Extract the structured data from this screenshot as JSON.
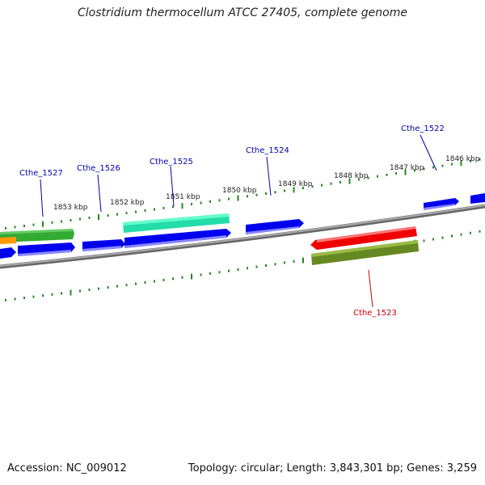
{
  "title": "Clostridium thermocellum ATCC 27405, complete genome",
  "footer": {
    "accession": "Accession: NC_009012",
    "summary": "Topology: circular; Length: 3,843,301 bp; Genes: 3,259"
  },
  "ruler_labels": [
    "1853 kbp",
    "1852 kbp",
    "1851 kbp",
    "1850 kbp",
    "1849 kbp",
    "1848 kbp",
    "1847 kbp",
    "1846 kbp"
  ],
  "gene_labels": [
    {
      "name": "Cthe_1527",
      "color": "#0000aa"
    },
    {
      "name": "Cthe_1526",
      "color": "#0000aa"
    },
    {
      "name": "Cthe_1525",
      "color": "#0000aa"
    },
    {
      "name": "Cthe_1524",
      "color": "#0000aa"
    },
    {
      "name": "Cthe_1522",
      "color": "#0000aa"
    },
    {
      "name": "Cthe_1523",
      "color": "#cc0000"
    }
  ],
  "colors": {
    "cds": "#0000ee",
    "gene_green": "#33aa33",
    "gene_teal": "#22ddaa",
    "gene_red": "#ee0000",
    "gene_olive": "#668822",
    "gene_orange": "#ff9900",
    "backbone": "#888888",
    "ticks": "#228822"
  }
}
